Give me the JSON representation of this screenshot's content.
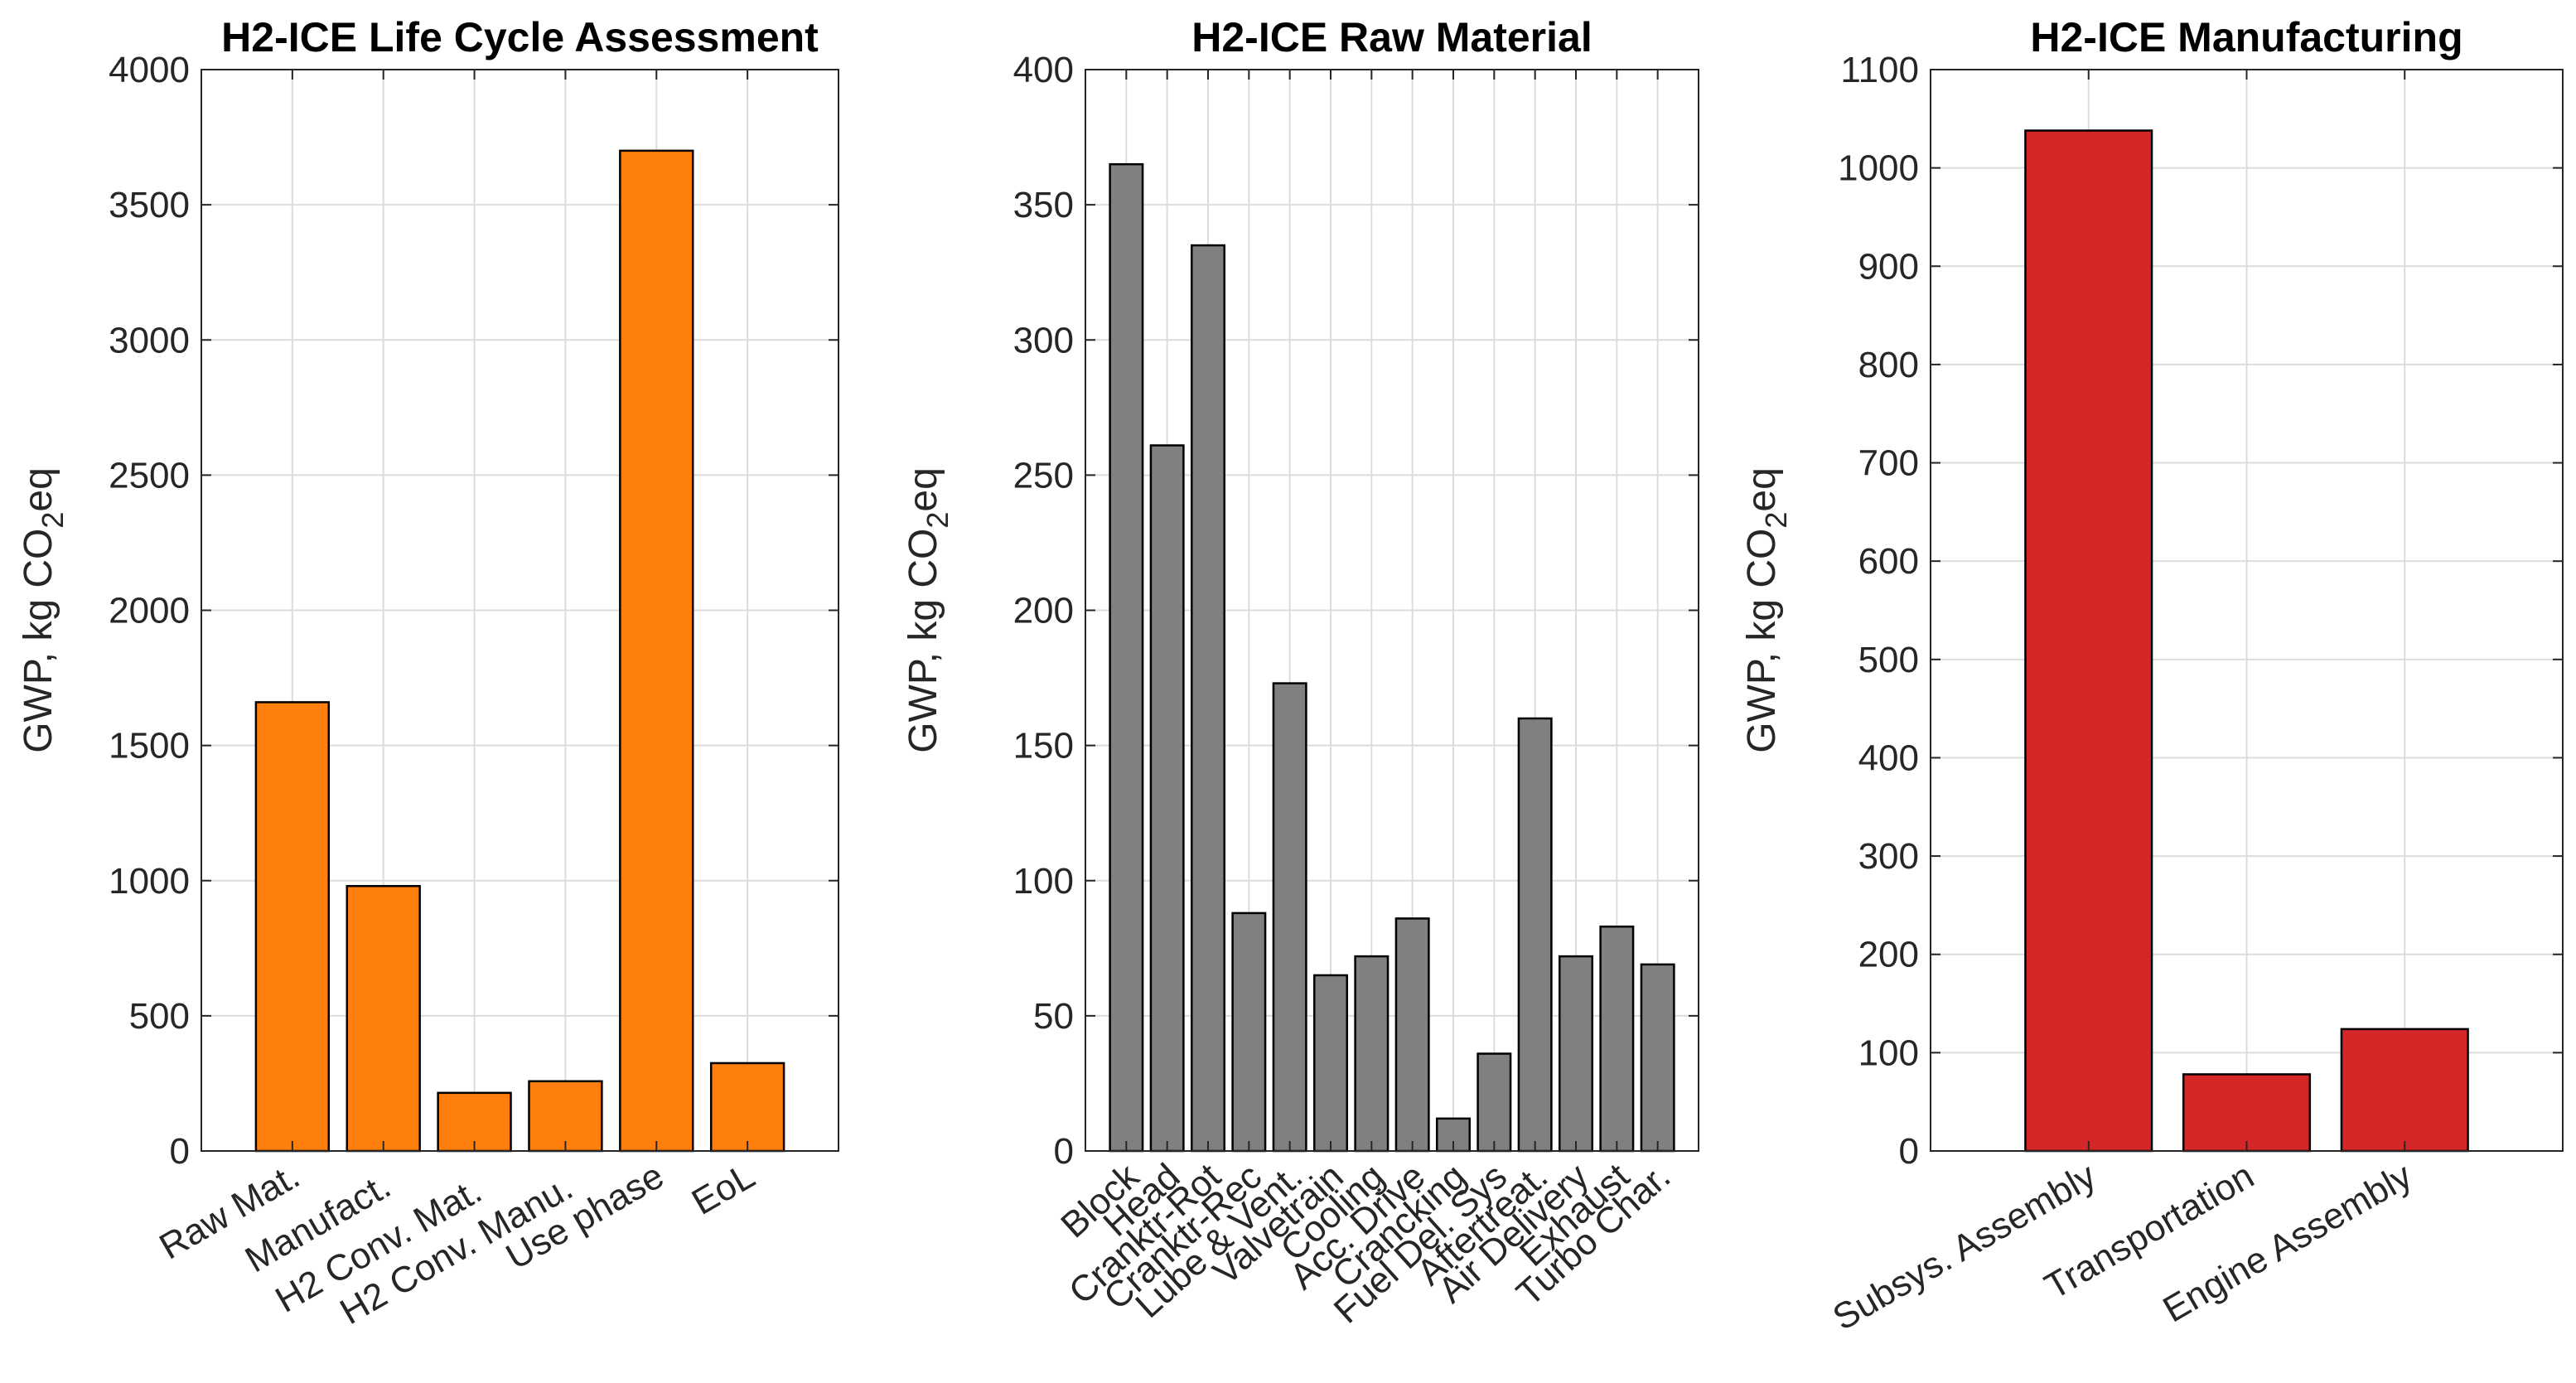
{
  "chart_data": [
    {
      "type": "bar",
      "title": "H2-ICE Life Cycle Assessment",
      "ylabel": "GWP, kg CO2eq",
      "ylabel_parts": {
        "pre": "GWP, kg CO",
        "sub": "2",
        "post": "eq"
      },
      "xlabel": "",
      "ylim": [
        0,
        4000
      ],
      "yticks": [
        0,
        500,
        1000,
        1500,
        2000,
        2500,
        3000,
        3500,
        4000
      ],
      "grid": true,
      "bar_color": "#FF7F0E",
      "categories": [
        "Raw Mat.",
        "Manufact.",
        "H2 Conv. Mat.",
        "H2 Conv. Manu.",
        "Use phase",
        "EoL"
      ],
      "values": [
        1660,
        980,
        215,
        258,
        3700,
        325
      ]
    },
    {
      "type": "bar",
      "title": "H2-ICE Raw Material",
      "ylabel": "GWP, kg CO2eq",
      "ylabel_parts": {
        "pre": "GWP, kg CO",
        "sub": "2",
        "post": "eq"
      },
      "xlabel": "",
      "ylim": [
        0,
        400
      ],
      "yticks": [
        0,
        50,
        100,
        150,
        200,
        250,
        300,
        350,
        400
      ],
      "grid": true,
      "bar_color": "#808080",
      "categories": [
        "Block",
        "Head",
        "Cranktr-Rot",
        "Cranktr-Rec",
        "Lube & Vent.",
        "Valvetrain",
        "Cooling",
        "Acc. Drive",
        "Crancking",
        "Fuel Del. Sys",
        "Aftertreat.",
        "Air Delivery",
        "Exhaust",
        "Turbo Char."
      ],
      "values": [
        365,
        261,
        335,
        88,
        173,
        65,
        72,
        86,
        12,
        36,
        160,
        72,
        83,
        69
      ]
    },
    {
      "type": "bar",
      "title": "H2-ICE Manufacturing",
      "ylabel": "GWP, kg CO2eq",
      "ylabel_parts": {
        "pre": "GWP, kg CO",
        "sub": "2",
        "post": "eq"
      },
      "xlabel": "",
      "ylim": [
        0,
        1100
      ],
      "yticks": [
        0,
        100,
        200,
        300,
        400,
        500,
        600,
        700,
        800,
        900,
        1000,
        1100
      ],
      "grid": true,
      "bar_color": "#D62728",
      "categories": [
        "Subsys. Assembly",
        "Transportation",
        "Engine Assembly"
      ],
      "values": [
        1038,
        78,
        124
      ]
    }
  ]
}
